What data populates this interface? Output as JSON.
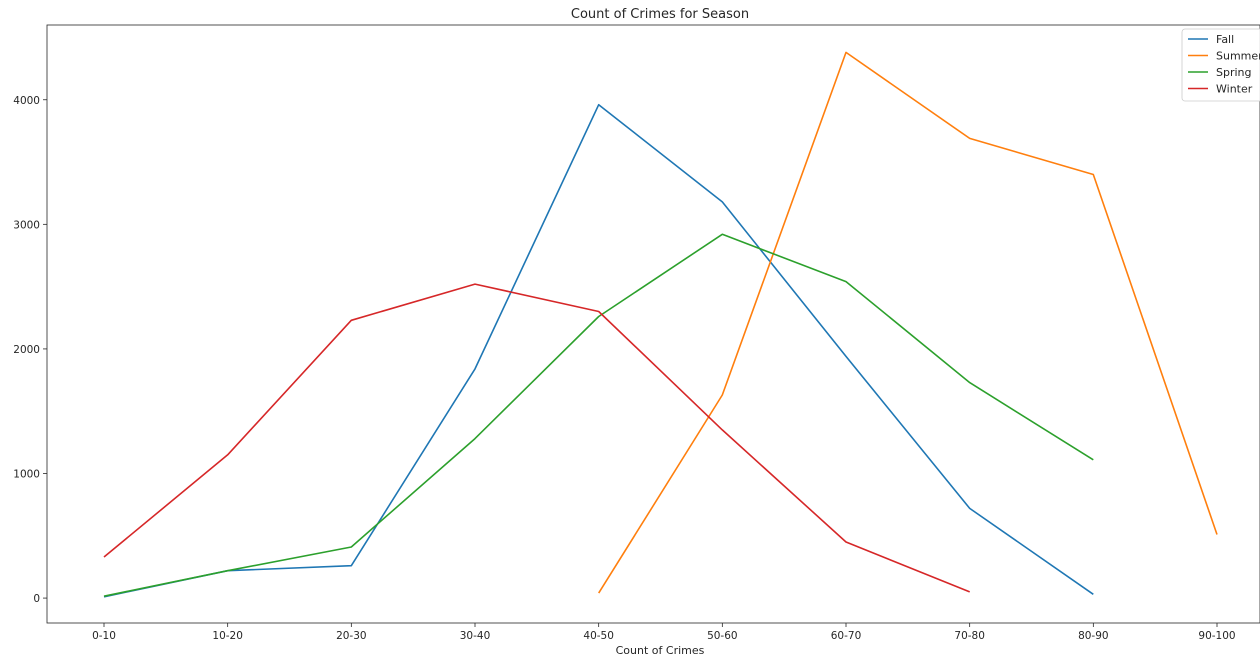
{
  "chart_data": {
    "type": "line",
    "title": "Count of Crimes for Season",
    "xlabel": "Count of Crimes",
    "ylabel": "",
    "categories": [
      "0-10",
      "10-20",
      "20-30",
      "30-40",
      "40-50",
      "50-60",
      "60-70",
      "70-80",
      "80-90",
      "90-100"
    ],
    "yticks": [
      0,
      1000,
      2000,
      3000,
      4000
    ],
    "ylim": [
      -200,
      4600
    ],
    "legend_position": "top-right",
    "grid": false,
    "series": [
      {
        "name": "Fall",
        "color": "#1f77b4",
        "values": [
          10,
          220,
          260,
          1840,
          3960,
          3180,
          1940,
          720,
          30,
          null
        ]
      },
      {
        "name": "Summer",
        "color": "#ff7f0e",
        "values": [
          null,
          null,
          null,
          null,
          40,
          1630,
          4380,
          3690,
          3400,
          510
        ]
      },
      {
        "name": "Spring",
        "color": "#2ca02c",
        "values": [
          15,
          220,
          410,
          1280,
          2260,
          2920,
          2540,
          1730,
          1110,
          null
        ]
      },
      {
        "name": "Winter",
        "color": "#d62728",
        "values": [
          330,
          1150,
          2230,
          2520,
          2300,
          1350,
          450,
          50,
          null,
          null
        ]
      }
    ]
  }
}
